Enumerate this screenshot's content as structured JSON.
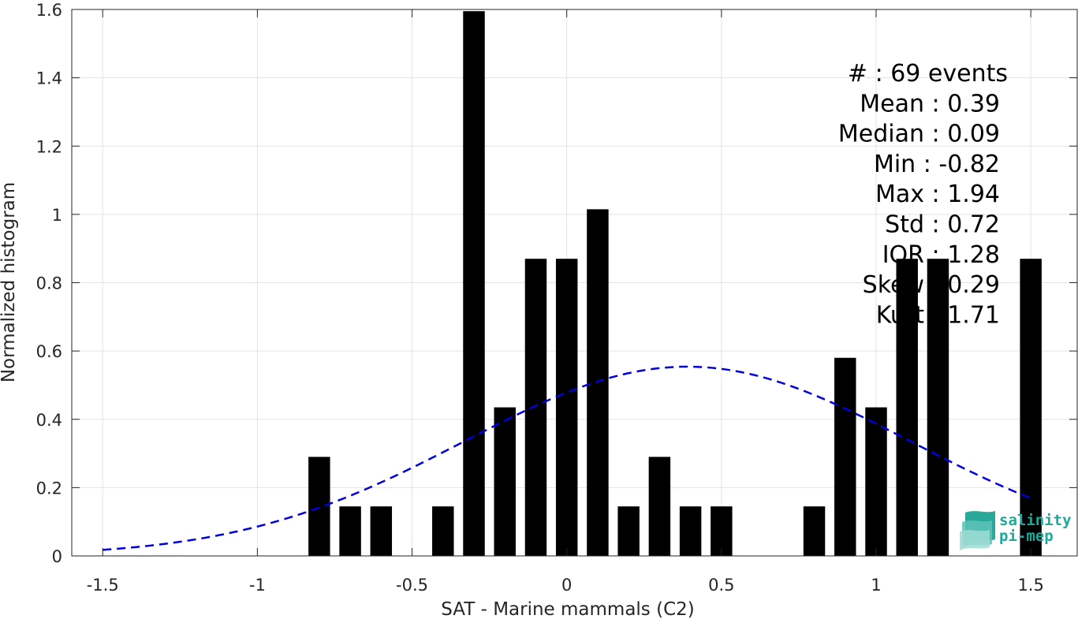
{
  "chart_data": {
    "type": "bar",
    "xlabel": "SAT - Marine mammals (C2)",
    "ylabel": "Normalized histogram",
    "xlim": [
      -1.6,
      1.65
    ],
    "ylim": [
      0,
      1.6
    ],
    "grid": true,
    "x_ticks": [
      -1.5,
      -1,
      -0.5,
      0,
      0.5,
      1,
      1.5
    ],
    "x_tick_labels": [
      "-1.5",
      "-1",
      "-0.5",
      "0",
      "0.5",
      "1",
      "1.5"
    ],
    "y_ticks": [
      0,
      0.2,
      0.4,
      0.6,
      0.8,
      1,
      1.2,
      1.4,
      1.6
    ],
    "y_tick_labels": [
      "0",
      "0.2",
      "0.4",
      "0.6",
      "0.8",
      "1",
      "1.2",
      "1.4",
      "1.6"
    ],
    "bar_width": 0.07,
    "bars": {
      "x": [
        -0.8,
        -0.7,
        -0.6,
        -0.4,
        -0.3,
        -0.2,
        -0.1,
        0.0,
        0.1,
        0.2,
        0.3,
        0.4,
        0.5,
        0.8,
        0.9,
        1.0,
        1.1,
        1.2,
        1.5
      ],
      "values": [
        0.29,
        0.145,
        0.145,
        0.145,
        1.595,
        0.435,
        0.87,
        0.87,
        1.015,
        0.145,
        0.29,
        0.145,
        0.145,
        0.145,
        0.58,
        0.435,
        0.87,
        0.87,
        0.87
      ],
      "color": "#000000"
    },
    "fit_curve": {
      "style": "dashed",
      "color": "#0000dd",
      "mean": 0.39,
      "std": 0.72,
      "x_range": [
        -1.5,
        1.5
      ]
    },
    "stats_lines": [
      "#  : 69 events",
      "Mean : 0.39",
      "Median : 0.09",
      "Min : -0.82",
      "Max : 1.94",
      "Std : 0.72",
      "IQR : 1.28",
      "Skew : 0.29",
      "Kurt : 1.71"
    ]
  },
  "logo": {
    "line1": "salinity",
    "line2": "pi-mep",
    "color": "#1fa89a"
  }
}
